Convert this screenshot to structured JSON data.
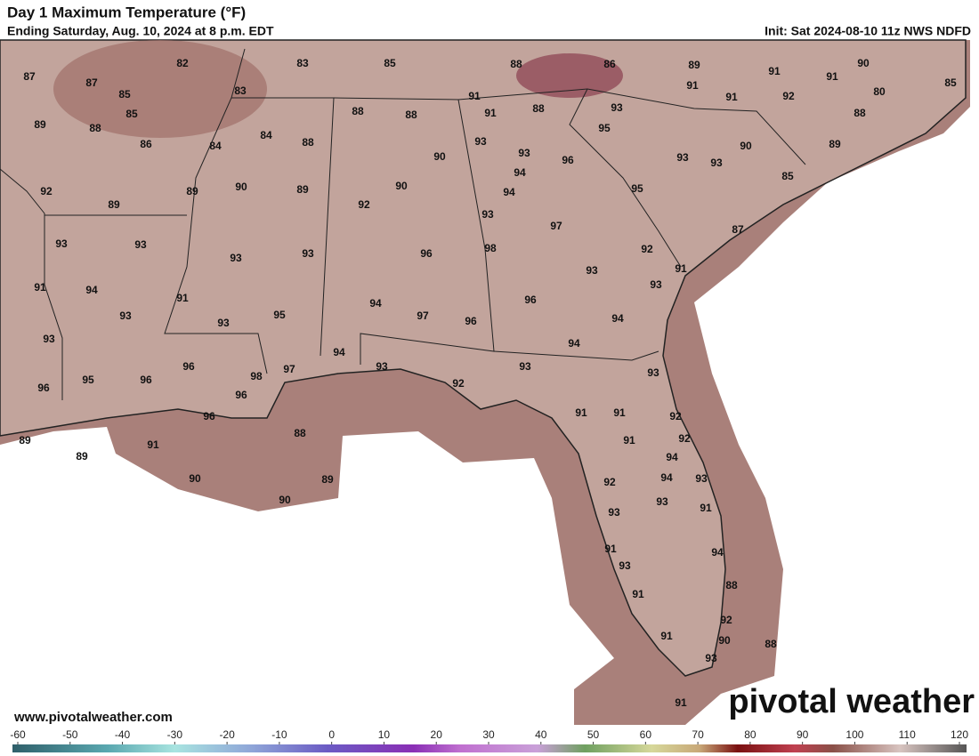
{
  "header": {
    "title": "Day 1 Maximum Temperature (°F)",
    "subtitle": "Ending Saturday, Aug. 10, 2024 at 8 p.m. EDT",
    "init": "Init: Sat 2024-08-10 11z NWS NDFD"
  },
  "map": {
    "labels": [
      87,
      82,
      83,
      85,
      88,
      86,
      89,
      91,
      90,
      87,
      85,
      83,
      91,
      91,
      91,
      92,
      80,
      85,
      85,
      89,
      88,
      88,
      88,
      91,
      91,
      88,
      93,
      88,
      86,
      84,
      84,
      88,
      93,
      93,
      95,
      96,
      93,
      90,
      93,
      89,
      90,
      94,
      85,
      92,
      89,
      90,
      89,
      90,
      94,
      95,
      89,
      92,
      93,
      97,
      87,
      93,
      93,
      93,
      93,
      96,
      98,
      92,
      93,
      91,
      93,
      91,
      94,
      91,
      93,
      96,
      94,
      95,
      97,
      96,
      94,
      93,
      93,
      94,
      94,
      96,
      97,
      98,
      93,
      93,
      93,
      96,
      95,
      96,
      96,
      92,
      96,
      91,
      91,
      92,
      89,
      91,
      88,
      91,
      92,
      89,
      94,
      90,
      89,
      92,
      94,
      93,
      93,
      93,
      91,
      90,
      91,
      94,
      93,
      88,
      91,
      92,
      88,
      90,
      91,
      93,
      91
    ]
  },
  "footer": {
    "url": "www.pivotalweather.com",
    "logo": "pivotal weather"
  },
  "colorbar": {
    "ticks": [
      -60,
      -50,
      -40,
      -30,
      -20,
      -10,
      0,
      10,
      20,
      30,
      40,
      50,
      60,
      70,
      80,
      90,
      100,
      110,
      120
    ]
  }
}
